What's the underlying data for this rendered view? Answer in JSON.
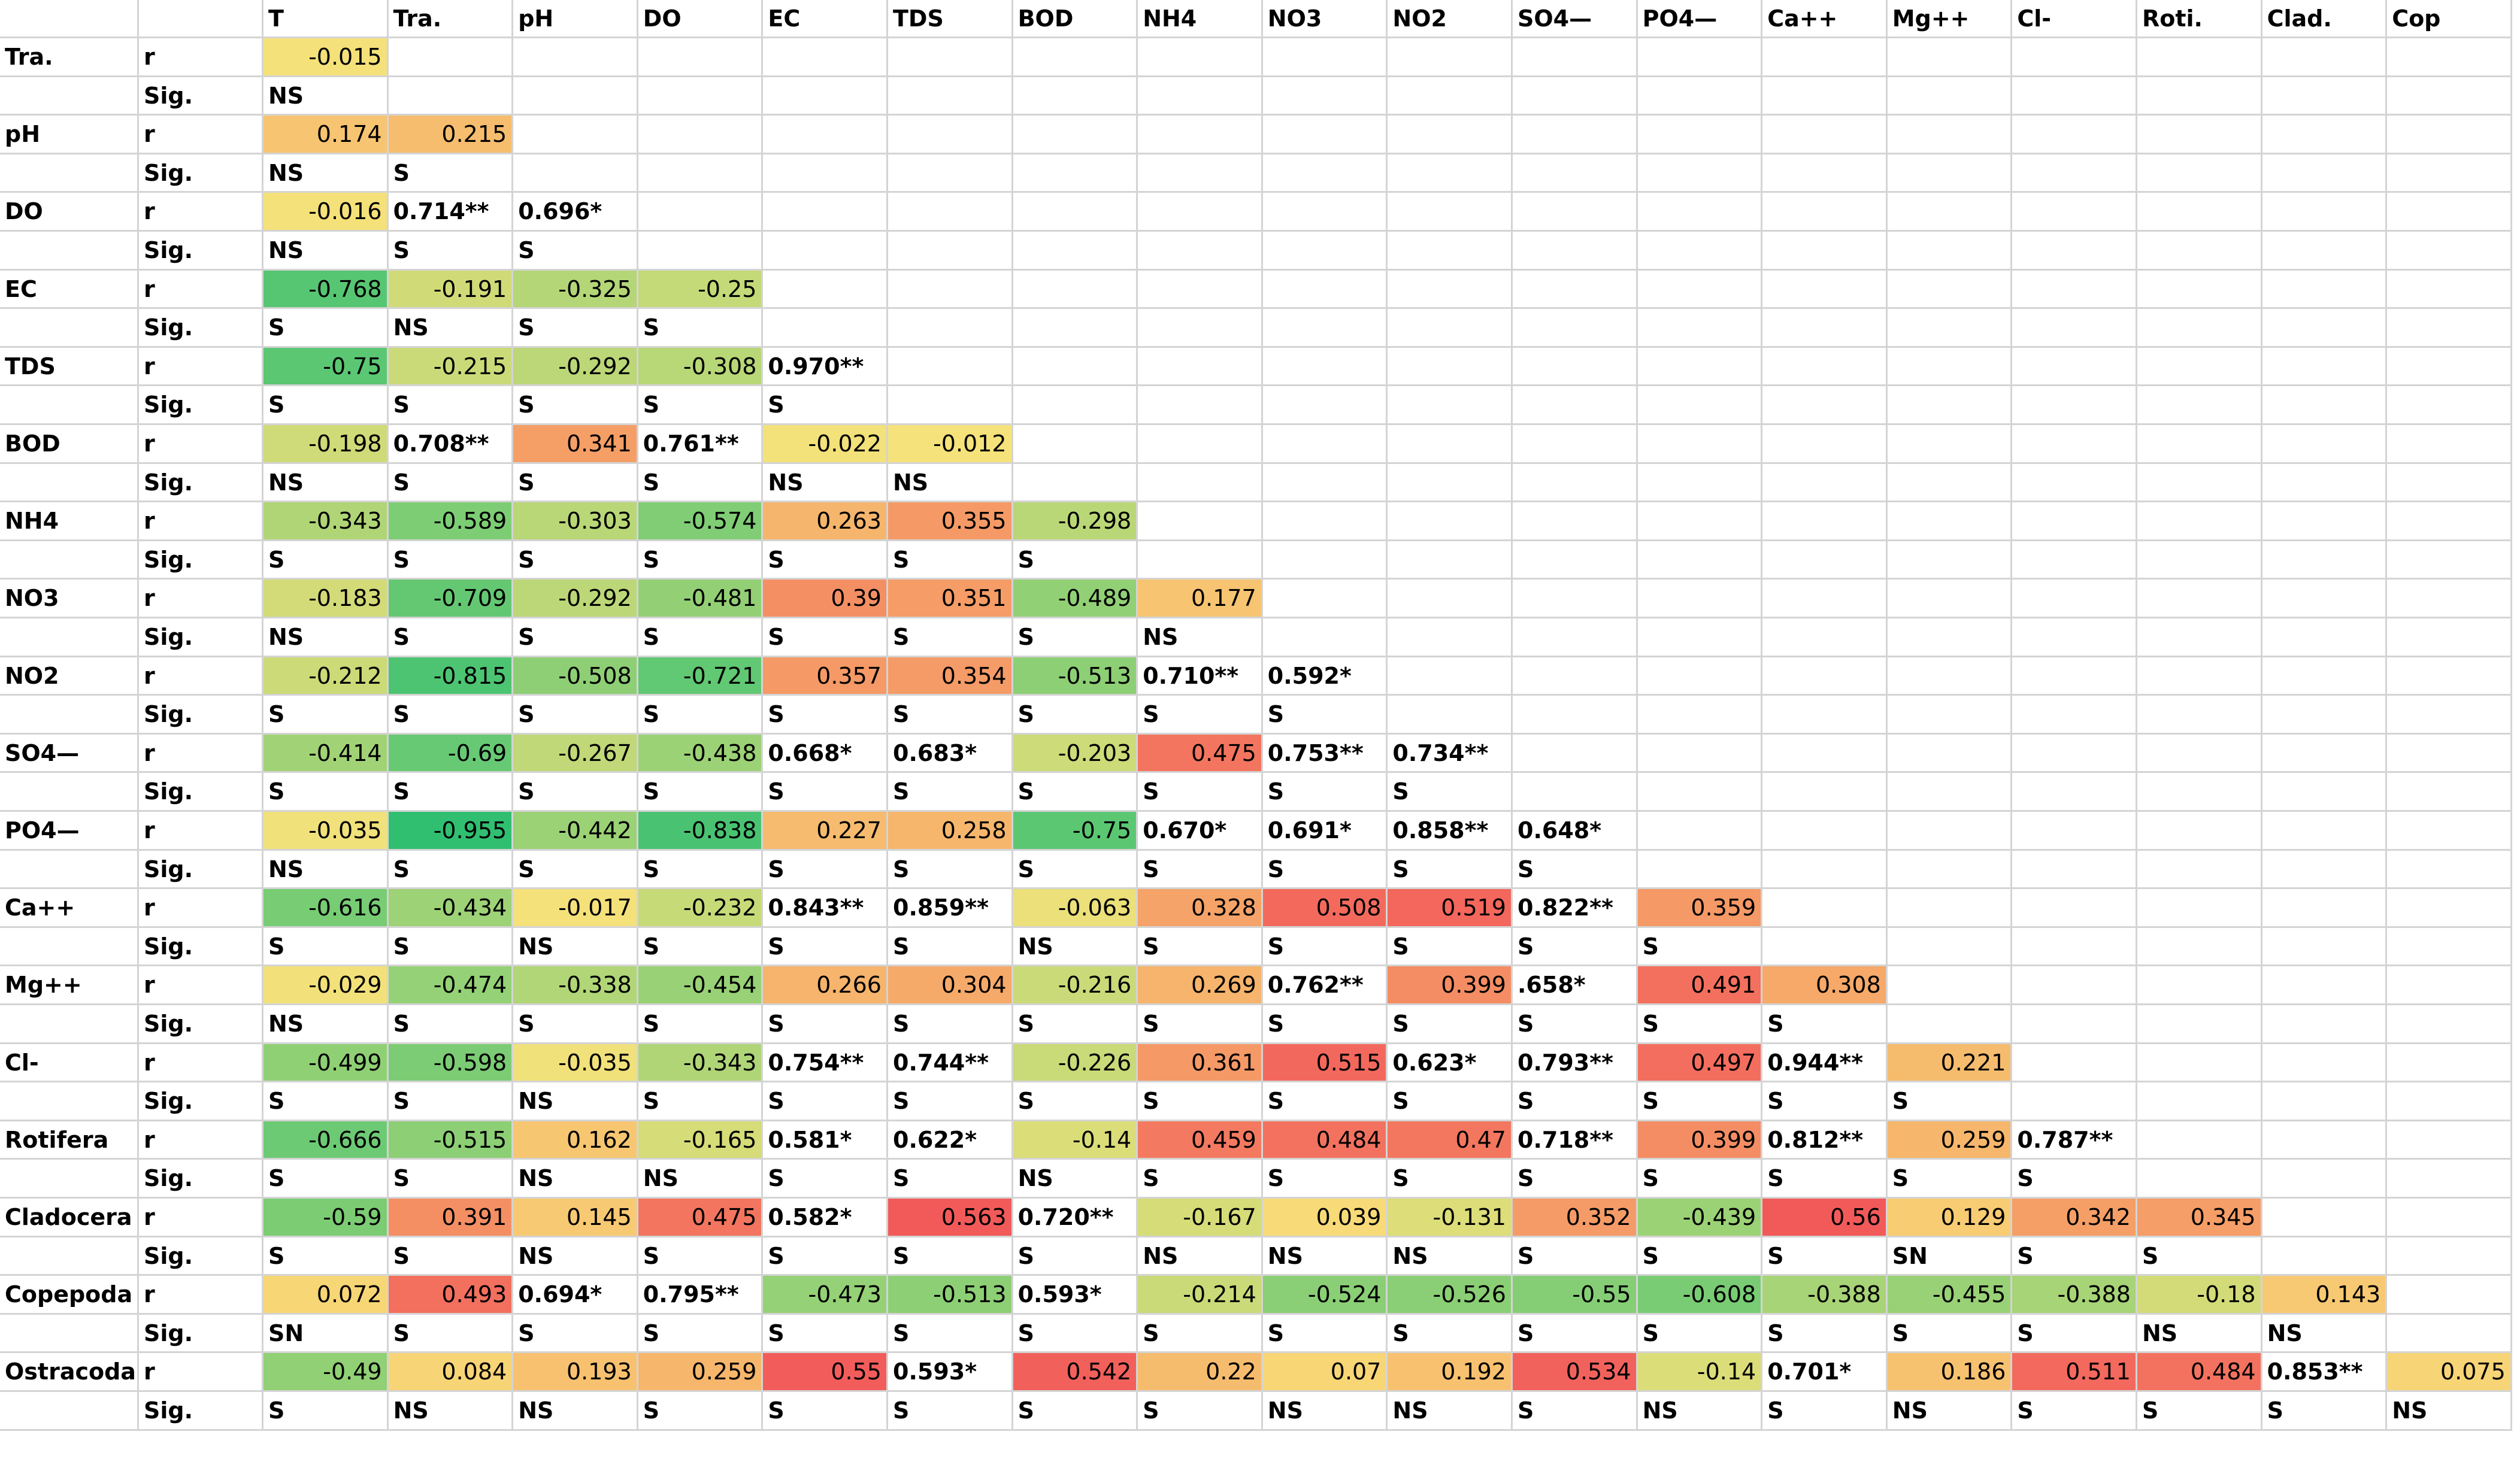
{
  "headers": [
    "T",
    "Tra.",
    "pH",
    "DO",
    "EC",
    "TDS",
    "BOD",
    "NH4",
    "NO3",
    "NO2",
    "SO4—",
    "PO4—",
    "Ca++",
    "Mg++",
    "Cl-",
    "Roti.",
    "Clad.",
    "Cop"
  ],
  "rows": [
    {
      "label": "Tra.",
      "r": [
        "-0.015"
      ],
      "sig": [
        "NS"
      ]
    },
    {
      "label": "pH",
      "r": [
        "0.174",
        "0.215"
      ],
      "sig": [
        "NS",
        "S"
      ]
    },
    {
      "label": "DO",
      "r": [
        "-0.016",
        "0.714**",
        "0.696*"
      ],
      "sig": [
        "NS",
        "S",
        "S"
      ]
    },
    {
      "label": "EC",
      "r": [
        "-0.768",
        "-0.191",
        "-0.325",
        "-0.25"
      ],
      "sig": [
        "S",
        "NS",
        "S",
        "S"
      ]
    },
    {
      "label": "TDS",
      "r": [
        "-0.75",
        "-0.215",
        "-0.292",
        "-0.308",
        "0.970**"
      ],
      "sig": [
        "S",
        "S",
        "S",
        "S",
        "S"
      ]
    },
    {
      "label": "BOD",
      "r": [
        "-0.198",
        "0.708**",
        "0.341",
        "0.761**",
        "-0.022",
        "-0.012"
      ],
      "sig": [
        "NS",
        "S",
        "S",
        "S",
        "NS",
        "NS"
      ]
    },
    {
      "label": "NH4",
      "r": [
        "-0.343",
        "-0.589",
        "-0.303",
        "-0.574",
        "0.263",
        "0.355",
        "-0.298"
      ],
      "sig": [
        "S",
        "S",
        "S",
        "S",
        "S",
        "S",
        "S"
      ]
    },
    {
      "label": "NO3",
      "r": [
        "-0.183",
        "-0.709",
        "-0.292",
        "-0.481",
        "0.39",
        "0.351",
        "-0.489",
        "0.177"
      ],
      "sig": [
        "NS",
        "S",
        "S",
        "S",
        "S",
        "S",
        "S",
        "NS"
      ]
    },
    {
      "label": "NO2",
      "r": [
        "-0.212",
        "-0.815",
        "-0.508",
        "-0.721",
        "0.357",
        "0.354",
        "-0.513",
        "0.710**",
        "0.592*"
      ],
      "sig": [
        "S",
        "S",
        "S",
        "S",
        "S",
        "S",
        "S",
        "S",
        "S"
      ]
    },
    {
      "label": "SO4—",
      "r": [
        "-0.414",
        "-0.69",
        "-0.267",
        "-0.438",
        "0.668*",
        "0.683*",
        "-0.203",
        "0.475",
        "0.753**",
        "0.734**"
      ],
      "sig": [
        "S",
        "S",
        "S",
        "S",
        "S",
        "S",
        "S",
        "S",
        "S",
        "S"
      ]
    },
    {
      "label": "PO4—",
      "r": [
        "-0.035",
        "-0.955",
        "-0.442",
        "-0.838",
        "0.227",
        "0.258",
        "-0.75",
        "0.670*",
        "0.691*",
        "0.858**",
        "0.648*"
      ],
      "sig": [
        "NS",
        "S",
        "S",
        "S",
        "S",
        "S",
        "S",
        "S",
        "S",
        "S",
        "S"
      ]
    },
    {
      "label": "Ca++",
      "r": [
        "-0.616",
        "-0.434",
        "-0.017",
        "-0.232",
        "0.843**",
        "0.859**",
        "-0.063",
        "0.328",
        "0.508",
        "0.519",
        "0.822**",
        "0.359"
      ],
      "sig": [
        "S",
        "S",
        "NS",
        "S",
        "S",
        "S",
        "NS",
        "S",
        "S",
        "S",
        "S",
        "S"
      ]
    },
    {
      "label": "Mg++",
      "r": [
        "-0.029",
        "-0.474",
        "-0.338",
        "-0.454",
        "0.266",
        "0.304",
        "-0.216",
        "0.269",
        "0.762**",
        "0.399",
        ".658*",
        "0.491",
        "0.308"
      ],
      "sig": [
        "NS",
        "S",
        "S",
        "S",
        "S",
        "S",
        "S",
        "S",
        "S",
        "S",
        "S",
        "S",
        "S"
      ]
    },
    {
      "label": "Cl-",
      "r": [
        "-0.499",
        "-0.598",
        "-0.035",
        "-0.343",
        "0.754**",
        "0.744**",
        "-0.226",
        "0.361",
        "0.515",
        "0.623*",
        "0.793**",
        "0.497",
        "0.944**",
        "0.221"
      ],
      "sig": [
        "S",
        "S",
        "NS",
        "S",
        "S",
        "S",
        "S",
        "S",
        "S",
        "S",
        "S",
        "S",
        "S",
        "S"
      ]
    },
    {
      "label": "Rotifera",
      "r": [
        "-0.666",
        "-0.515",
        "0.162",
        "-0.165",
        "0.581*",
        "0.622*",
        "-0.14",
        "0.459",
        "0.484",
        "0.47",
        "0.718**",
        "0.399",
        "0.812**",
        "0.259",
        "0.787**"
      ],
      "sig": [
        "S",
        "S",
        "NS",
        "NS",
        "S",
        "S",
        "NS",
        "S",
        "S",
        "S",
        "S",
        "S",
        "S",
        "S",
        "S"
      ]
    },
    {
      "label": "Cladocera",
      "r": [
        "-0.59",
        "0.391",
        "0.145",
        "0.475",
        "0.582*",
        "0.563",
        "0.720**",
        "-0.167",
        "0.039",
        "-0.131",
        "0.352",
        "-0.439",
        "0.56",
        "0.129",
        "0.342",
        "0.345"
      ],
      "sig": [
        "S",
        "S",
        "NS",
        "S",
        "S",
        "S",
        "S",
        "NS",
        "NS",
        "NS",
        "S",
        "S",
        "S",
        "SN",
        "S",
        "S"
      ]
    },
    {
      "label": "Copepoda",
      "r": [
        "0.072",
        "0.493",
        "0.694*",
        "0.795**",
        "-0.473",
        "-0.513",
        "0.593*",
        "-0.214",
        "-0.524",
        "-0.526",
        "-0.55",
        "-0.608",
        "-0.388",
        "-0.455",
        "-0.388",
        "-0.18",
        "0.143"
      ],
      "sig": [
        "SN",
        "S",
        "S",
        "S",
        "S",
        "S",
        "S",
        "S",
        "S",
        "S",
        "S",
        "S",
        "S",
        "S",
        "S",
        "NS",
        "NS"
      ]
    },
    {
      "label": "Ostracoda",
      "r": [
        "-0.49",
        "0.084",
        "0.193",
        "0.259",
        "0.55",
        "0.593*",
        "0.542",
        "0.22",
        "0.07",
        "0.192",
        "0.534",
        "-0.14",
        "0.701*",
        "0.186",
        "0.511",
        "0.484",
        "0.853**",
        "0.075"
      ],
      "sig": [
        "S",
        "NS",
        "NS",
        "S",
        "S",
        "S",
        "S",
        "S",
        "NS",
        "NS",
        "S",
        "NS",
        "S",
        "NS",
        "S",
        "S",
        "S",
        "NS"
      ]
    }
  ],
  "r_label": "r",
  "sig_label": "Sig.",
  "colors": {
    "neg_strong": "#2fbf71",
    "neutral": "#f8e27a",
    "pos_strong": "#f25a5a",
    "grid": "#d4d4d4"
  }
}
